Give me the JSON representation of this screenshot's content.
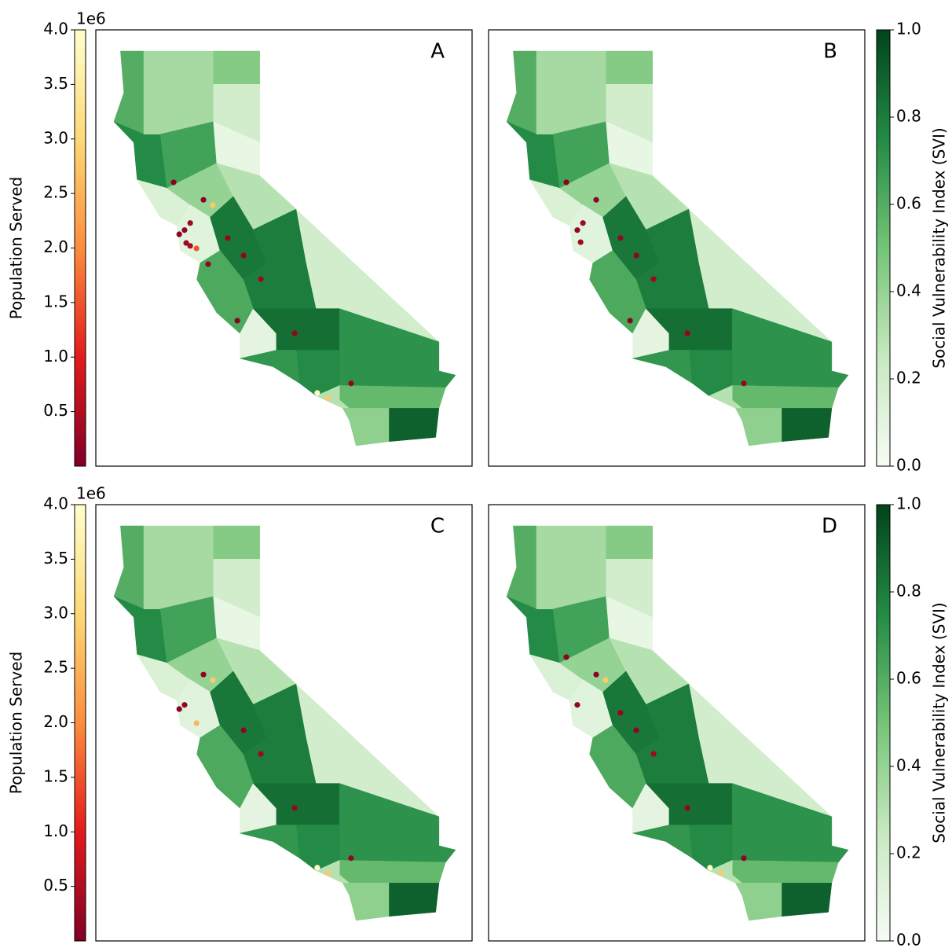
{
  "population_colorbar": {
    "label": "Population Served",
    "offset_label": "1e6",
    "lim": [
      0,
      4000000
    ],
    "ticks": [
      {
        "value": 500000,
        "label": "0.5"
      },
      {
        "value": 1000000,
        "label": "1.0"
      },
      {
        "value": 1500000,
        "label": "1.5"
      },
      {
        "value": 2000000,
        "label": "2.0"
      },
      {
        "value": 2500000,
        "label": "2.5"
      },
      {
        "value": 3000000,
        "label": "3.0"
      },
      {
        "value": 3500000,
        "label": "3.5"
      },
      {
        "value": 4000000,
        "label": "4.0"
      }
    ]
  },
  "svi_colorbar": {
    "label": "Social Vulnerability Index (SVI)",
    "lim": [
      0,
      1
    ],
    "ticks": [
      {
        "value": 0,
        "label": "0.0"
      },
      0.2,
      0.4,
      0.6,
      0.8,
      {
        "value": 1,
        "label": "1.0"
      }
    ]
  },
  "regions_svi": [
    0.6,
    0.75,
    0.35,
    0.45,
    0.2,
    0.65,
    0.08,
    0.15,
    0.4,
    0.12,
    0.3,
    0.82,
    0.8,
    0.2,
    0.62,
    0.1,
    0.85,
    0.72,
    0.7,
    0.75,
    0.55,
    0.3,
    0.42,
    0.9
  ],
  "panels": [
    {
      "label": "A",
      "points": [
        {
          "lon": -122.6,
          "lat": 38.84,
          "population": 100000
        },
        {
          "lon": -121.7,
          "lat": 38.42,
          "population": 150000
        },
        {
          "lon": -121.42,
          "lat": 38.29,
          "population": 2800000
        },
        {
          "lon": -122.1,
          "lat": 37.86,
          "population": 300000
        },
        {
          "lon": -122.27,
          "lat": 37.69,
          "population": 200000
        },
        {
          "lon": -122.43,
          "lat": 37.59,
          "population": 100000
        },
        {
          "lon": -122.22,
          "lat": 37.38,
          "population": 300000
        },
        {
          "lon": -122.1,
          "lat": 37.31,
          "population": 400000
        },
        {
          "lon": -121.91,
          "lat": 37.25,
          "population": 1500000
        },
        {
          "lon": -120.97,
          "lat": 37.5,
          "population": 200000
        },
        {
          "lon": -120.49,
          "lat": 37.08,
          "population": 150000
        },
        {
          "lon": -121.56,
          "lat": 36.87,
          "population": 200000
        },
        {
          "lon": -119.97,
          "lat": 36.51,
          "population": 300000
        },
        {
          "lon": -120.68,
          "lat": 35.51,
          "population": 100000
        },
        {
          "lon": -118.95,
          "lat": 35.21,
          "population": 200000
        },
        {
          "lon": -117.25,
          "lat": 34.0,
          "population": 200000
        },
        {
          "lon": -118.27,
          "lat": 33.77,
          "population": 4000000
        },
        {
          "lon": -117.94,
          "lat": 33.64,
          "population": 2800000
        }
      ]
    },
    {
      "label": "B",
      "points": [
        {
          "lon": -122.6,
          "lat": 38.84,
          "population": 100000
        },
        {
          "lon": -121.7,
          "lat": 38.42,
          "population": 150000
        },
        {
          "lon": -122.1,
          "lat": 37.86,
          "population": 300000
        },
        {
          "lon": -122.27,
          "lat": 37.69,
          "population": 200000
        },
        {
          "lon": -122.17,
          "lat": 37.4,
          "population": 300000
        },
        {
          "lon": -120.97,
          "lat": 37.5,
          "population": 200000
        },
        {
          "lon": -120.49,
          "lat": 37.08,
          "population": 150000
        },
        {
          "lon": -119.97,
          "lat": 36.51,
          "population": 300000
        },
        {
          "lon": -120.68,
          "lat": 35.51,
          "population": 100000
        },
        {
          "lon": -118.95,
          "lat": 35.21,
          "population": 200000
        },
        {
          "lon": -117.25,
          "lat": 34.0,
          "population": 200000
        }
      ]
    },
    {
      "label": "C",
      "points": [
        {
          "lon": -121.7,
          "lat": 38.42,
          "population": 150000
        },
        {
          "lon": -121.42,
          "lat": 38.29,
          "population": 2800000
        },
        {
          "lon": -122.43,
          "lat": 37.59,
          "population": 100000
        },
        {
          "lon": -122.27,
          "lat": 37.69,
          "population": 200000
        },
        {
          "lon": -121.91,
          "lat": 37.25,
          "population": 2500000
        },
        {
          "lon": -120.49,
          "lat": 37.08,
          "population": 150000
        },
        {
          "lon": -119.97,
          "lat": 36.51,
          "population": 300000
        },
        {
          "lon": -118.95,
          "lat": 35.21,
          "population": 200000
        },
        {
          "lon": -117.25,
          "lat": 34.0,
          "population": 200000
        },
        {
          "lon": -118.27,
          "lat": 33.77,
          "population": 4000000
        },
        {
          "lon": -117.94,
          "lat": 33.64,
          "population": 2800000
        }
      ]
    },
    {
      "label": "D",
      "points": [
        {
          "lon": -122.6,
          "lat": 38.84,
          "population": 100000
        },
        {
          "lon": -121.7,
          "lat": 38.42,
          "population": 150000
        },
        {
          "lon": -121.42,
          "lat": 38.29,
          "population": 2800000
        },
        {
          "lon": -122.27,
          "lat": 37.69,
          "population": 200000
        },
        {
          "lon": -120.97,
          "lat": 37.5,
          "population": 200000
        },
        {
          "lon": -120.49,
          "lat": 37.08,
          "population": 150000
        },
        {
          "lon": -119.97,
          "lat": 36.51,
          "population": 300000
        },
        {
          "lon": -118.95,
          "lat": 35.21,
          "population": 200000
        },
        {
          "lon": -117.25,
          "lat": 34.0,
          "population": 200000
        },
        {
          "lon": -118.27,
          "lat": 33.77,
          "population": 4000000
        },
        {
          "lon": -117.94,
          "lat": 33.64,
          "population": 2800000
        }
      ]
    }
  ]
}
